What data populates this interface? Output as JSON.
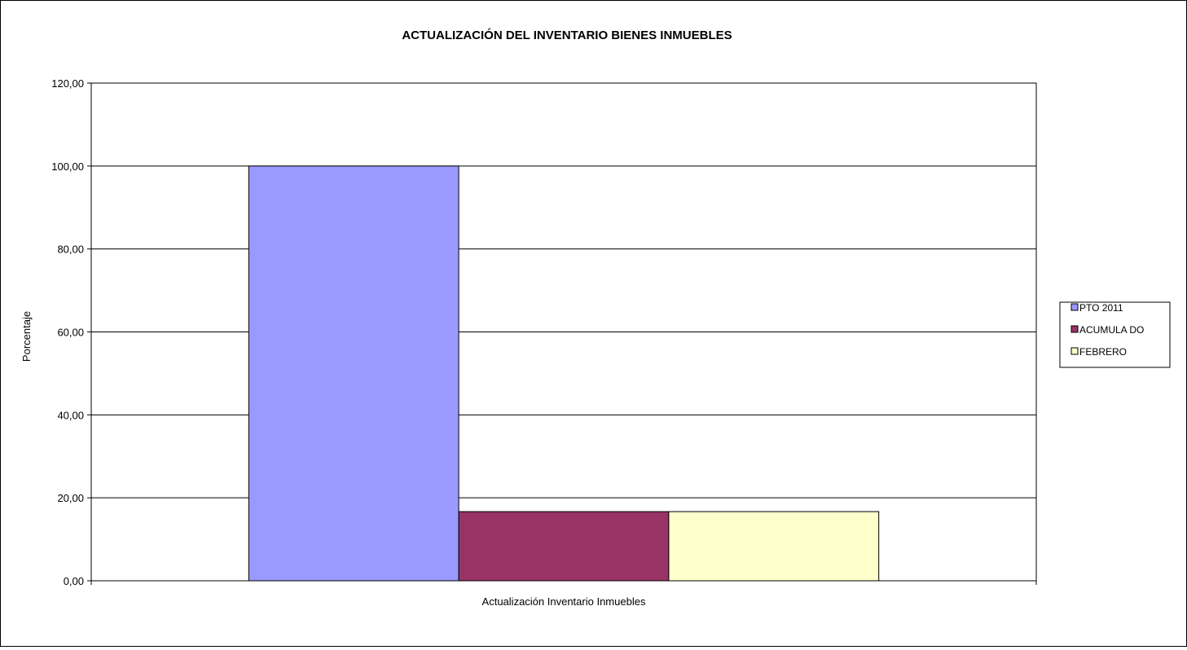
{
  "chart_data": {
    "type": "bar",
    "title": "ACTUALIZACIÓN  DEL INVENTARIO BIENES INMUEBLES",
    "xlabel": "",
    "ylabel": "Porcentaje",
    "categories": [
      "Actualización Inventario  Inmuebles"
    ],
    "series": [
      {
        "name": "PTO  2011",
        "values": [
          100.0
        ],
        "color": "#9999ff"
      },
      {
        "name": "ACUMULA DO",
        "values": [
          16.67
        ],
        "color": "#993366"
      },
      {
        "name": "FEBRERO",
        "values": [
          16.67
        ],
        "color": "#ffffcc"
      }
    ],
    "ylim": [
      0,
      120
    ],
    "yticks": [
      "0,00",
      "20,00",
      "40,00",
      "60,00",
      "80,00",
      "100,00",
      "120,00"
    ],
    "ytick_values": [
      0,
      20,
      40,
      60,
      80,
      100,
      120
    ],
    "grid": true,
    "legend_position": "right"
  }
}
